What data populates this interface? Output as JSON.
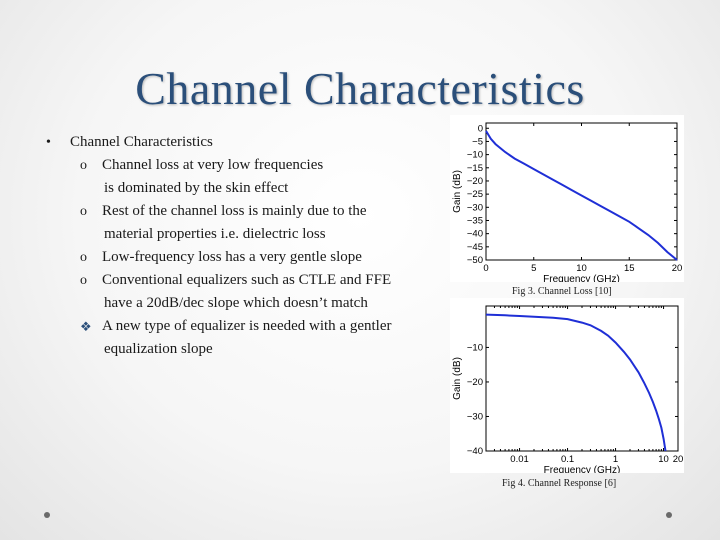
{
  "slide": {
    "title": "Channel Characteristics",
    "bullets": {
      "main": "Channel Characteristics",
      "marker_main": "•",
      "marker_sub": "o",
      "marker_star": "❖",
      "items": [
        {
          "line1": "Channel loss at very low frequencies",
          "line2": "is dominated by the skin effect"
        },
        {
          "line1": "Rest of the channel loss is mainly due to the",
          "line2": "material properties i.e. dielectric loss"
        },
        {
          "line1": "Low-frequency loss has a very gentle slope"
        },
        {
          "line1": "Conventional equalizers such as CTLE and FFE",
          "line2": "have a 20dB/dec slope which doesn’t match"
        }
      ],
      "star_item": {
        "line1": "A new type of equalizer is needed with a gentler",
        "line2": "equalization slope"
      }
    },
    "fig3_caption": "Fig 3. Channel Loss [10]",
    "fig4_caption": "Fig 4. Channel  Response [6]"
  },
  "chart_data": [
    {
      "type": "line",
      "xlabel": "Frequency (GHz)",
      "ylabel": "Gain (dB)",
      "xlim": [
        0,
        20
      ],
      "ylim": [
        -50,
        2
      ],
      "xticks": [
        0,
        5,
        10,
        15,
        20
      ],
      "yticks": [
        0,
        -5,
        -10,
        -15,
        -20,
        -25,
        -30,
        -35,
        -40,
        -45,
        -50
      ],
      "grid": false,
      "line_color": "#1f2fd6",
      "x": [
        0,
        0.5,
        1,
        2,
        3,
        4,
        5,
        6,
        7,
        8,
        9,
        10,
        11,
        12,
        13,
        14,
        15,
        16,
        17,
        18,
        19,
        20
      ],
      "values": [
        -1,
        -4,
        -6,
        -9,
        -11.5,
        -13.5,
        -15.5,
        -17.5,
        -19.5,
        -21.5,
        -23.5,
        -25.5,
        -27.5,
        -29.5,
        -31.5,
        -33.5,
        -35.5,
        -38,
        -40.5,
        -43.5,
        -47,
        -50
      ]
    },
    {
      "type": "line",
      "xscale": "log",
      "xlabel": "Frequency (GHz)",
      "ylabel": "Gain (dB)",
      "xlim": [
        0.002,
        20
      ],
      "ylim": [
        -40,
        2
      ],
      "xticks": [
        0.01,
        0.1,
        1,
        10,
        20
      ],
      "xtick_labels": [
        "0.01",
        "0.1",
        "1",
        "10",
        "20"
      ],
      "yticks": [
        -10,
        -20,
        -30,
        -40
      ],
      "grid": false,
      "line_color": "#1f2fd6",
      "x": [
        0.002,
        0.005,
        0.01,
        0.02,
        0.05,
        0.1,
        0.2,
        0.3,
        0.5,
        0.7,
        1,
        1.5,
        2,
        3,
        4,
        5,
        6,
        7,
        8,
        9,
        10,
        11
      ],
      "values": [
        -0.5,
        -0.7,
        -0.9,
        -1.1,
        -1.4,
        -1.8,
        -2.8,
        -3.6,
        -5.2,
        -6.6,
        -8.6,
        -11.3,
        -13.5,
        -17.2,
        -20.4,
        -23.2,
        -25.8,
        -28.3,
        -30.8,
        -33.3,
        -36.5,
        -40
      ]
    }
  ]
}
